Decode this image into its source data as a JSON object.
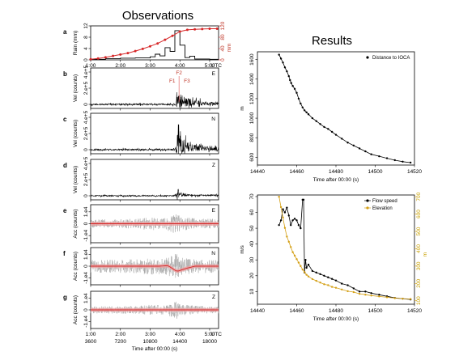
{
  "headers": {
    "observations": "Observations",
    "results": "Results"
  },
  "colors": {
    "black": "#000000",
    "red": "#d62728",
    "redband": "#e8a0a0",
    "gray": "#aaaaaa",
    "gold": "#d4a017"
  },
  "chart_data": [
    {
      "id": "a",
      "panel_label": "a",
      "type": "line",
      "xticks": [
        "1:00",
        "2:00",
        "3:00",
        "4:00",
        "5:00"
      ],
      "xunit": "UTC",
      "ylabel": "Rain (mm)",
      "yticks_left": [
        "0",
        "4",
        "8",
        "12"
      ],
      "ylim": [
        0,
        12
      ],
      "ylabel_right": "mm",
      "yticks_right": [
        "0",
        "40",
        "80",
        "120"
      ],
      "ylim_right": [
        0,
        120
      ],
      "step_series": {
        "name": "",
        "x": [
          1.0,
          1.5,
          2.0,
          2.5,
          3.0,
          3.17,
          3.33,
          3.5,
          3.67,
          3.83,
          4.0,
          4.17,
          4.33,
          4.5,
          5.0,
          5.3
        ],
        "values": [
          0.2,
          0.4,
          0.6,
          0.7,
          1.1,
          2.0,
          1.4,
          4.3,
          3.0,
          10.3,
          5.2,
          0.8,
          1.3,
          0.3,
          0.2,
          0.2
        ]
      },
      "cumulative_series": {
        "name": "",
        "x": [
          1.0,
          1.25,
          1.5,
          1.75,
          2.0,
          2.25,
          2.5,
          2.75,
          3.0,
          3.25,
          3.5,
          3.75,
          4.0,
          4.25,
          4.5,
          4.75,
          5.0,
          5.25
        ],
        "values": [
          2,
          5,
          9,
          14,
          19,
          24,
          31,
          39,
          48,
          58,
          71,
          85,
          100,
          106,
          108,
          109,
          110,
          110
        ]
      }
    },
    {
      "id": "b",
      "panel_label": "b",
      "type": "line",
      "component": "E",
      "ylabel": "Vel (counts)",
      "yticks": [
        "0",
        "2.e+5",
        "4.e+5"
      ],
      "ylim": [
        -0.5,
        4.5
      ],
      "annotations": [
        "F1",
        "F2",
        "F3"
      ],
      "envelope": {
        "x": [
          1.0,
          3.7,
          3.85,
          3.9,
          3.95,
          4.0,
          4.1,
          4.2,
          4.4,
          4.7,
          5.0,
          5.3
        ],
        "amplitude": [
          0.18,
          0.2,
          0.3,
          1.6,
          2.1,
          1.9,
          1.5,
          1.2,
          0.9,
          0.6,
          0.4,
          0.3
        ]
      }
    },
    {
      "id": "c",
      "panel_label": "c",
      "type": "line",
      "component": "N",
      "ylabel": "Vel (counts)",
      "yticks": [
        "0",
        "2.e+5",
        "4.e+5"
      ],
      "ylim": [
        -0.5,
        4.5
      ],
      "envelope": {
        "x": [
          1.0,
          3.7,
          3.85,
          3.9,
          3.95,
          4.0,
          4.1,
          4.2,
          4.4,
          4.7,
          5.0,
          5.3
        ],
        "amplitude": [
          0.2,
          0.25,
          0.5,
          2.6,
          3.2,
          2.6,
          1.9,
          1.4,
          1.0,
          0.7,
          0.5,
          0.4
        ]
      }
    },
    {
      "id": "d",
      "panel_label": "d",
      "type": "line",
      "component": "Z",
      "ylabel": "Vel (counts)",
      "yticks": [
        "0",
        "2.e+5",
        "4.e+5"
      ],
      "ylim": [
        -0.5,
        4.5
      ],
      "envelope": {
        "x": [
          1.0,
          3.8,
          3.88,
          3.95,
          4.0,
          4.05,
          4.15,
          4.3,
          5.3
        ],
        "amplitude": [
          0.15,
          0.15,
          0.9,
          1.2,
          0.6,
          0.8,
          0.4,
          0.25,
          0.2
        ]
      }
    },
    {
      "id": "e",
      "panel_label": "e",
      "type": "line",
      "component": "E",
      "ylabel": "Acc (counts)",
      "yticks": [
        "-1.e4",
        "0",
        "1.e4"
      ],
      "ylim": [
        -1.6,
        1.6
      ],
      "envelope": {
        "x": [
          1.0,
          2.5,
          3.0,
          3.5,
          3.9,
          4.0,
          4.5,
          5.3
        ],
        "amplitude": [
          0.35,
          0.4,
          0.55,
          0.5,
          0.9,
          0.6,
          0.45,
          0.4
        ]
      }
    },
    {
      "id": "f",
      "panel_label": "f",
      "type": "line",
      "component": "N",
      "ylabel": "Acc (counts)",
      "yticks": [
        "-1.e4",
        "0",
        "1.e4"
      ],
      "ylim": [
        -1.6,
        1.6
      ],
      "envelope": {
        "x": [
          1.0,
          2.5,
          3.0,
          3.5,
          3.9,
          4.0,
          4.5,
          5.3
        ],
        "amplitude": [
          0.55,
          0.6,
          0.75,
          0.7,
          1.1,
          0.8,
          0.6,
          0.55
        ]
      },
      "trend": {
        "x": [
          1.0,
          3.3,
          3.6,
          3.9,
          4.2,
          4.5,
          5.3
        ],
        "values": [
          0.0,
          0.0,
          0.05,
          -0.45,
          -0.2,
          0.0,
          0.0
        ]
      }
    },
    {
      "id": "g",
      "panel_label": "g",
      "type": "line",
      "component": "Z",
      "ylabel": "Acc (counts)",
      "yticks": [
        "-1.e4",
        "0",
        "1.e4"
      ],
      "ylim": [
        -1.6,
        1.6
      ],
      "envelope": {
        "x": [
          1.0,
          2.5,
          3.0,
          3.5,
          3.9,
          4.0,
          4.5,
          5.3
        ],
        "amplitude": [
          0.3,
          0.35,
          0.45,
          0.4,
          0.8,
          0.5,
          0.35,
          0.3
        ]
      },
      "xticks_top": [
        "1:00",
        "2:00",
        "3:00",
        "4:00",
        "5:00"
      ],
      "xunit_top": "UTC",
      "xticks_bottom": [
        "3600",
        "7200",
        "10800",
        "14400",
        "18000"
      ],
      "xlabel": "Time after 00:00 (s)"
    },
    {
      "id": "distance",
      "type": "line",
      "xlabel": "Time after 00:00 (s)",
      "xticks": [
        "14440",
        "14460",
        "14480",
        "14500",
        "14520"
      ],
      "xlim": [
        14440,
        14520
      ],
      "ylabel": "m",
      "yticks": [
        "600",
        "800",
        "1000",
        "1200",
        "1400",
        "1600"
      ],
      "ylim": [
        520,
        1680
      ],
      "legend_position": "top-right",
      "series": [
        {
          "name": "Distance to IOCA",
          "x": [
            14451,
            14452,
            14453,
            14454,
            14455,
            14456,
            14456.6,
            14457.2,
            14458,
            14459,
            14460,
            14461,
            14462,
            14463,
            14464,
            14465,
            14466,
            14468,
            14470,
            14472,
            14474,
            14476,
            14478,
            14480,
            14483,
            14486,
            14489,
            14492,
            14495,
            14498,
            14502,
            14506,
            14510,
            14514,
            14518
          ],
          "values": [
            1650,
            1610,
            1570,
            1520,
            1480,
            1430,
            1390,
            1360,
            1330,
            1300,
            1260,
            1200,
            1150,
            1110,
            1080,
            1060,
            1040,
            1000,
            970,
            940,
            910,
            890,
            860,
            830,
            790,
            750,
            720,
            690,
            660,
            630,
            610,
            590,
            570,
            555,
            545
          ]
        }
      ]
    },
    {
      "id": "flow",
      "type": "line",
      "xlabel": "Time after 00:00 (s)",
      "xticks": [
        "14440",
        "14460",
        "14480",
        "14500",
        "14520"
      ],
      "xlim": [
        14440,
        14520
      ],
      "ylabel": "m/s",
      "yticks": [
        "10",
        "20",
        "30",
        "40",
        "50",
        "60",
        "70"
      ],
      "ylim": [
        2,
        71
      ],
      "ylabel_right": "m",
      "yticks_right": [
        "100",
        "200",
        "300",
        "400",
        "500",
        "600",
        "700"
      ],
      "ylim_right": [
        80,
        710
      ],
      "legend_position": "top-right",
      "series": [
        {
          "name": "Flow speed",
          "x": [
            14451,
            14452,
            14453,
            14454,
            14455,
            14456,
            14457,
            14458,
            14459,
            14460,
            14461,
            14462,
            14463,
            14463.5,
            14464,
            14464.5,
            14465,
            14466,
            14468,
            14470,
            14472,
            14474,
            14476,
            14478,
            14480,
            14483,
            14486,
            14489,
            14492,
            14495,
            14498,
            14502,
            14506,
            14510,
            14514,
            14518
          ],
          "values": [
            52,
            55,
            62,
            60,
            63,
            58,
            52,
            55,
            56,
            55,
            52,
            50,
            68,
            68,
            22,
            30,
            25,
            27,
            23,
            22,
            21,
            20,
            19,
            18,
            17,
            15,
            14,
            12,
            10,
            10,
            9,
            8,
            7,
            6,
            5.5,
            5
          ]
        },
        {
          "name": "Elevation",
          "axis": "right",
          "x": [
            14451,
            14452,
            14453,
            14454,
            14455,
            14456,
            14457,
            14458,
            14459,
            14460,
            14461,
            14462,
            14463,
            14464,
            14465,
            14466,
            14468,
            14470,
            14472,
            14474,
            14476,
            14478,
            14480,
            14483,
            14486,
            14489,
            14492,
            14495,
            14498,
            14502,
            14506,
            14510,
            14514,
            14518
          ],
          "values": [
            700,
            640,
            580,
            520,
            470,
            440,
            410,
            380,
            360,
            340,
            320,
            300,
            280,
            265,
            250,
            240,
            225,
            215,
            205,
            195,
            190,
            180,
            175,
            165,
            155,
            150,
            140,
            135,
            130,
            125,
            120,
            115,
            112,
            110
          ]
        }
      ]
    }
  ]
}
